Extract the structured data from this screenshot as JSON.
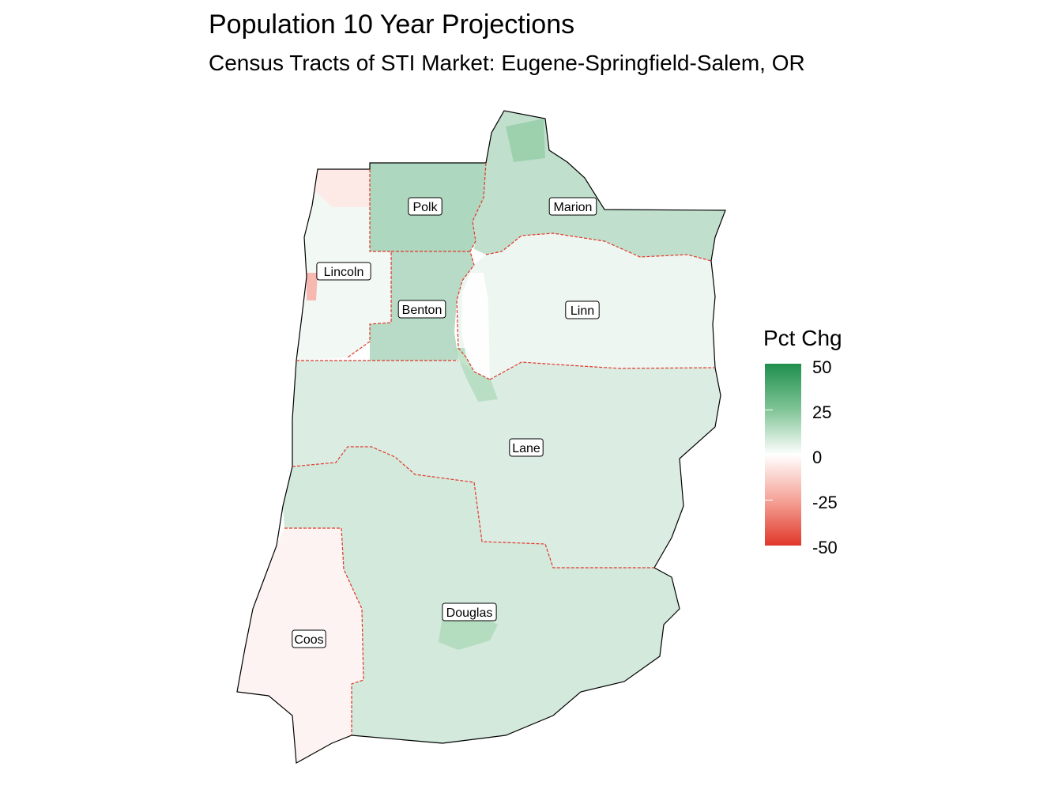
{
  "title": "Population 10 Year Projections",
  "subtitle": "Census Tracts of STI Market: Eugene-Springfield-Salem, OR",
  "legend": {
    "title": "Pct Chg",
    "ticks": [
      "50",
      "25",
      "0",
      "-25",
      "-50"
    ],
    "colors": {
      "high": "#1f8f4e",
      "mid": "#ffffff",
      "low": "#e0382a"
    }
  },
  "counties": [
    {
      "name": "Polk",
      "pct_chg": 18
    },
    {
      "name": "Marion",
      "pct_chg": 14
    },
    {
      "name": "Lincoln",
      "pct_chg": 3
    },
    {
      "name": "Benton",
      "pct_chg": 16
    },
    {
      "name": "Linn",
      "pct_chg": 4
    },
    {
      "name": "Lane",
      "pct_chg": 8
    },
    {
      "name": "Douglas",
      "pct_chg": 10
    },
    {
      "name": "Coos",
      "pct_chg": -3
    }
  ]
}
